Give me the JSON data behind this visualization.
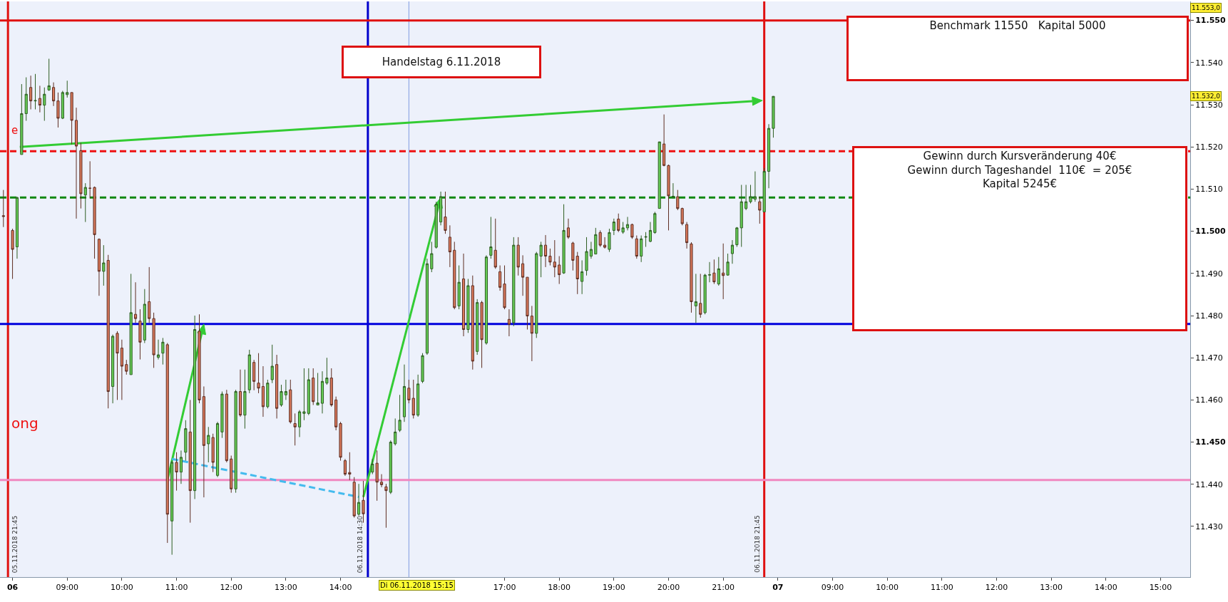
{
  "chart_data": {
    "type": "candlestick",
    "categories": [
      null,
      null,
      "06",
      null,
      null,
      null,
      null,
      null,
      null,
      null,
      null,
      null,
      null,
      null,
      "09:00",
      null,
      null,
      null,
      null,
      null,
      null,
      null,
      null,
      null,
      null,
      null,
      "10:00",
      null,
      null,
      null,
      null,
      null,
      null,
      null,
      null,
      null,
      null,
      null,
      "11:00",
      null,
      null,
      null,
      null,
      null,
      null,
      null,
      null,
      null,
      null,
      null,
      "12:00",
      null,
      null,
      null,
      null,
      null,
      null,
      null,
      null,
      null,
      null,
      null,
      "13:00",
      null,
      null,
      null,
      null,
      null,
      null,
      null,
      null,
      null,
      null,
      null,
      "14:00",
      null,
      null,
      null,
      null,
      null,
      null,
      null,
      null,
      null,
      null,
      null,
      null,
      null,
      null,
      null,
      null,
      null,
      null,
      null,
      null,
      null,
      null,
      null,
      null,
      null,
      null,
      null,
      null,
      null,
      null,
      null,
      null,
      null,
      null,
      null,
      "17:00",
      null,
      null,
      null,
      null,
      null,
      null,
      null,
      null,
      null,
      null,
      null,
      "18:00",
      null,
      null,
      null,
      null,
      null,
      null,
      null,
      null,
      null,
      null,
      null,
      "19:00",
      null,
      null,
      null,
      null,
      null,
      null,
      null,
      null,
      null,
      null,
      null,
      "20:00",
      null,
      null,
      null,
      null,
      null,
      null,
      null,
      null,
      null,
      null,
      null,
      "21:00",
      null,
      null,
      null,
      null,
      null,
      null,
      null,
      null,
      null,
      null,
      null,
      "07",
      null,
      null,
      null,
      null,
      null,
      null,
      null,
      null,
      null,
      null,
      null,
      "09:00",
      null,
      null,
      null,
      null,
      null,
      null,
      null,
      null,
      null,
      null,
      null,
      "10:00",
      null,
      null,
      null,
      null,
      null,
      null,
      null,
      null,
      null,
      null,
      null,
      "11:00",
      null,
      null,
      null,
      null,
      null,
      null,
      null,
      null,
      null,
      null,
      null,
      "12:00",
      null,
      null,
      null,
      null,
      null,
      null,
      null,
      null,
      null,
      null,
      null,
      "13:00",
      null,
      null,
      null,
      null,
      null,
      null,
      null,
      null,
      null,
      null,
      null,
      "14:00",
      null,
      null,
      null,
      null,
      null,
      null,
      null,
      null,
      null,
      null,
      null,
      "15:00",
      null,
      null,
      null,
      null,
      null,
      null
    ],
    "ohlc": [
      [
        11503.7,
        11509.8,
        11501.0,
        11503.5
      ],
      null,
      [
        11500.2,
        11500.6,
        11488.7,
        11495.7
      ],
      [
        11496.3,
        11508.2,
        11493.5,
        11508.0
      ],
      [
        11518.2,
        11534.9,
        11518.2,
        11527.9
      ],
      [
        11527.9,
        11536.5,
        11526.2,
        11532.5
      ],
      [
        11534.1,
        11536.9,
        11528.9,
        11530.9
      ],
      [
        11530.9,
        11537.3,
        11528.9,
        11531.0
      ],
      [
        11531.5,
        11534.5,
        11528.2,
        11529.9
      ],
      [
        11529.9,
        11534.1,
        11526.2,
        11532.5
      ],
      [
        11533.5,
        11540.9,
        11533.3,
        11534.5
      ],
      [
        11534.1,
        11535.3,
        11529.7,
        11530.9
      ],
      [
        11530.9,
        11532.9,
        11524.6,
        11526.8
      ],
      [
        11526.8,
        11533.3,
        11526.6,
        11532.9
      ],
      [
        11532.4,
        11535.7,
        11531.7,
        11532.9
      ],
      [
        11532.9,
        11532.9,
        11520.6,
        11526.3
      ],
      [
        11526.3,
        11529.3,
        11503.0,
        11520.2
      ],
      [
        11519.1,
        11521.0,
        11505.4,
        11508.9
      ],
      [
        11508.6,
        11511.4,
        11502.2,
        11510.4
      ],
      [
        11510.2,
        11516.6,
        11507.8,
        11510.2
      ],
      [
        11510.4,
        11510.6,
        11493.5,
        11499.2
      ],
      [
        11498.1,
        11498.3,
        11484.7,
        11490.5
      ],
      [
        11490.5,
        11496.7,
        11487.1,
        11492.5
      ],
      [
        11493.1,
        11494.4,
        11458.0,
        11462.0
      ],
      [
        11463.2,
        11475.5,
        11459.2,
        11475.1
      ],
      [
        11475.8,
        11476.3,
        11460.0,
        11471.1
      ],
      [
        11472.3,
        11474.3,
        11460.0,
        11468.0
      ],
      [
        11468.4,
        11469.5,
        11466.0,
        11466.8
      ],
      [
        11466.0,
        11489.9,
        11466.0,
        11480.7
      ],
      [
        11480.3,
        11487.9,
        11478.3,
        11479.3
      ],
      [
        11478.7,
        11481.5,
        11469.6,
        11473.7
      ],
      [
        11474.2,
        11486.3,
        11473.5,
        11482.7
      ],
      [
        11483.3,
        11491.5,
        11478.3,
        11479.3
      ],
      [
        11479.3,
        11480.7,
        11467.6,
        11470.7
      ],
      [
        11470.1,
        11474.3,
        11469.6,
        11470.7
      ],
      [
        11471.1,
        11474.7,
        11468.4,
        11473.7
      ],
      [
        11473.1,
        11473.5,
        11426.1,
        11432.9
      ],
      [
        11431.3,
        11445.6,
        11423.3,
        11445.2
      ],
      [
        11445.2,
        11447.6,
        11438.5,
        11442.9
      ],
      [
        11442.9,
        11448.0,
        11440.1,
        11446.4
      ],
      [
        11447.6,
        11455.2,
        11445.6,
        11453.2
      ],
      [
        11452.4,
        11460.0,
        11430.9,
        11438.5
      ],
      [
        11438.5,
        11480.0,
        11436.5,
        11476.7
      ],
      [
        11476.3,
        11480.3,
        11459.2,
        11460.0
      ],
      [
        11460.8,
        11463.2,
        11436.9,
        11449.2
      ],
      [
        11449.6,
        11453.6,
        11445.2,
        11451.6
      ],
      [
        11451.1,
        11452.0,
        11442.9,
        11445.2
      ],
      [
        11442.1,
        11454.8,
        11441.7,
        11454.4
      ],
      [
        11452.4,
        11462.0,
        11451.0,
        11461.4
      ],
      [
        11461.4,
        11462.4,
        11445.2,
        11445.6
      ],
      [
        11446.0,
        11446.8,
        11438.0,
        11438.9
      ],
      [
        11438.9,
        11462.4,
        11438.0,
        11462.0
      ],
      [
        11462.0,
        11467.2,
        11456.0,
        11456.4
      ],
      [
        11456.4,
        11467.2,
        11453.2,
        11462.0
      ],
      [
        11462.4,
        11471.9,
        11461.6,
        11470.7
      ],
      [
        11468.9,
        11469.5,
        11462.3,
        11464.4
      ],
      [
        11464.0,
        11471.1,
        11461.6,
        11462.8
      ],
      [
        11463.2,
        11468.0,
        11456.0,
        11458.4
      ],
      [
        11458.4,
        11464.8,
        11458.0,
        11464.0
      ],
      [
        11464.8,
        11473.1,
        11464.0,
        11468.0
      ],
      [
        11468.4,
        11470.7,
        11455.6,
        11458.0
      ],
      [
        11458.8,
        11463.6,
        11458.4,
        11462.0
      ],
      [
        11461.2,
        11464.8,
        11460.0,
        11462.0
      ],
      [
        11462.4,
        11464.8,
        11454.4,
        11454.8
      ],
      [
        11454.4,
        11456.8,
        11449.2,
        11453.6
      ],
      [
        11453.6,
        11457.6,
        11451.2,
        11457.2
      ],
      [
        11456.8,
        11467.5,
        11455.2,
        11457.2
      ],
      [
        11456.8,
        11467.5,
        11456.4,
        11464.8
      ],
      [
        11465.2,
        11467.5,
        11458.8,
        11459.6
      ],
      [
        11458.8,
        11466.4,
        11458.8,
        11459.3
      ],
      [
        11459.2,
        11466.8,
        11456.8,
        11464.4
      ],
      [
        11464.0,
        11470.0,
        11463.6,
        11465.2
      ],
      [
        11465.2,
        11467.5,
        11458.4,
        11458.8
      ],
      [
        11460.0,
        11460.8,
        11452.8,
        11453.6
      ],
      [
        11454.4,
        11454.8,
        11445.6,
        11446.4
      ],
      [
        11445.6,
        11446.0,
        11442.0,
        11442.4
      ],
      [
        11442.8,
        11447.6,
        11441.0,
        11442.4
      ],
      [
        11440.5,
        11441.7,
        11432.1,
        11432.5
      ],
      [
        11432.9,
        11440.1,
        11432.5,
        11435.7
      ],
      [
        11436.2,
        11440.8,
        11430.9,
        11433.0
      ],
      null,
      [
        11442.9,
        11446.0,
        11442.4,
        11444.8
      ],
      [
        11445.0,
        11448.0,
        11436.1,
        11440.5
      ],
      [
        11440.5,
        11442.4,
        11439.3,
        11439.9
      ],
      [
        11439.4,
        11440.1,
        11429.7,
        11438.5
      ],
      [
        11438.1,
        11450.4,
        11437.7,
        11450.0
      ],
      [
        11449.6,
        11455.6,
        11449.2,
        11452.4
      ],
      [
        11452.8,
        11461.2,
        11452.4,
        11455.2
      ],
      [
        11456.0,
        11468.4,
        11454.8,
        11463.2
      ],
      [
        11462.8,
        11464.8,
        11459.2,
        11460.0
      ],
      [
        11460.4,
        11464.8,
        11455.6,
        11456.4
      ],
      [
        11456.4,
        11466.0,
        11456.0,
        11463.8
      ],
      [
        11464.4,
        11471.1,
        11464.0,
        11470.5
      ],
      [
        11471.1,
        11493.5,
        11470.7,
        11492.3
      ],
      [
        11491.1,
        11497.5,
        11490.3,
        11494.7
      ],
      [
        11496.2,
        11507.0,
        11495.9,
        11506.4
      ],
      [
        11502.2,
        11509.4,
        11501.4,
        11508.2
      ],
      [
        11503.4,
        11509.4,
        11499.4,
        11500.2
      ],
      [
        11498.6,
        11501.4,
        11491.5,
        11495.1
      ],
      [
        11495.5,
        11497.5,
        11481.5,
        11481.9
      ],
      [
        11482.3,
        11491.9,
        11481.5,
        11487.9
      ],
      [
        11488.7,
        11494.7,
        11475.1,
        11476.7
      ],
      [
        11476.7,
        11488.7,
        11475.9,
        11487.1
      ],
      [
        11487.1,
        11489.5,
        11467.2,
        11469.2
      ],
      [
        11471.5,
        11483.9,
        11470.7,
        11483.1
      ],
      [
        11483.1,
        11483.5,
        11467.6,
        11474.3
      ],
      [
        11473.5,
        11494.3,
        11473.1,
        11493.9
      ],
      [
        11494.3,
        11503.4,
        11493.5,
        11496.3
      ],
      [
        11495.5,
        11503.0,
        11491.1,
        11491.5
      ],
      [
        11490.4,
        11491.9,
        11485.9,
        11486.7
      ],
      [
        11487.5,
        11491.9,
        11481.5,
        11481.9
      ],
      [
        11479.1,
        11481.5,
        11475.1,
        11477.9
      ],
      [
        11478.3,
        11498.6,
        11477.5,
        11496.7
      ],
      [
        11496.7,
        11498.6,
        11489.5,
        11491.5
      ],
      [
        11492.3,
        11494.3,
        11484.7,
        11489.1
      ],
      [
        11489.1,
        11489.1,
        11476.7,
        11479.9
      ],
      [
        11479.9,
        11482.3,
        11469.2,
        11475.8
      ],
      [
        11475.8,
        11495.1,
        11474.7,
        11494.7
      ],
      [
        11494.1,
        11497.5,
        11489.1,
        11496.7
      ],
      [
        11496.7,
        11499.1,
        11491.5,
        11494.1
      ],
      [
        11494.1,
        11495.9,
        11491.9,
        11492.7
      ],
      [
        11492.7,
        11497.9,
        11489.1,
        11491.5
      ],
      [
        11492.0,
        11494.1,
        11487.5,
        11489.7
      ],
      [
        11490.1,
        11506.4,
        11489.9,
        11500.2
      ],
      [
        11500.8,
        11503.0,
        11498.2,
        11498.6
      ],
      [
        11497.2,
        11497.5,
        11490.7,
        11493.1
      ],
      [
        11494.1,
        11495.1,
        11485.1,
        11488.7
      ],
      [
        11488.1,
        11493.1,
        11485.1,
        11490.4
      ],
      [
        11490.7,
        11498.6,
        11489.5,
        11495.2
      ],
      [
        11494.1,
        11497.5,
        11493.5,
        11495.7
      ],
      [
        11494.6,
        11500.8,
        11494.6,
        11499.2
      ],
      [
        11499.7,
        11500.2,
        11496.3,
        11496.7
      ],
      [
        11496.7,
        11498.6,
        11495.9,
        11496.2
      ],
      [
        11495.7,
        11500.6,
        11495.1,
        11499.7
      ],
      [
        11500.2,
        11503.0,
        11499.1,
        11502.2
      ],
      [
        11502.9,
        11504.2,
        11499.8,
        11500.2
      ],
      [
        11499.8,
        11502.2,
        11499.4,
        11500.8
      ],
      [
        11500.8,
        11503.4,
        11500.2,
        11501.6
      ],
      [
        11501.6,
        11501.8,
        11498.2,
        11498.6
      ],
      [
        11498.2,
        11499.0,
        11493.5,
        11494.1
      ],
      [
        11494.1,
        11499.0,
        11492.7,
        11498.2
      ],
      [
        11498.6,
        11499.8,
        11496.3,
        11498.7
      ],
      [
        11497.6,
        11502.2,
        11497.4,
        11500.2
      ],
      [
        11499.7,
        11504.6,
        11499.4,
        11504.2
      ],
      [
        11505.4,
        11521.2,
        11505.4,
        11521.2
      ],
      [
        11520.7,
        11527.7,
        11515.4,
        11515.6
      ],
      [
        11515.6,
        11515.8,
        11500.2,
        11508.4
      ],
      [
        11508.2,
        11511.4,
        11507.8,
        11508.3
      ],
      [
        11508.2,
        11509.8,
        11505.0,
        11505.4
      ],
      [
        11505.4,
        11505.6,
        11501.4,
        11501.8
      ],
      [
        11501.6,
        11502.2,
        11495.9,
        11497.3
      ],
      [
        11497.0,
        11497.4,
        11480.7,
        11483.3
      ],
      [
        11482.3,
        11489.9,
        11478.3,
        11483.3
      ],
      [
        11482.9,
        11489.9,
        11479.5,
        11480.3
      ],
      [
        11480.7,
        11489.9,
        11480.3,
        11489.6
      ],
      [
        11489.6,
        11492.7,
        11487.9,
        11489.7
      ],
      [
        11490.1,
        11493.3,
        11487.5,
        11488.0
      ],
      [
        11487.5,
        11493.9,
        11487.1,
        11491.1
      ],
      [
        11490.1,
        11497.1,
        11483.9,
        11489.5
      ],
      [
        11489.6,
        11494.7,
        11489.5,
        11492.7
      ],
      [
        11494.7,
        11497.9,
        11492.3,
        11496.7
      ],
      [
        11496.8,
        11501.0,
        11496.3,
        11500.8
      ],
      [
        11500.8,
        11511.0,
        11496.3,
        11507.0
      ],
      [
        11505.4,
        11511.0,
        11505.0,
        11507.0
      ],
      [
        11507.0,
        11511.0,
        11506.6,
        11508.2
      ],
      [
        11507.6,
        11514.2,
        11507.0,
        11508.2
      ],
      [
        11507.0,
        11508.2,
        11501.8,
        11505.0
      ],
      [
        11504.6,
        11515.0,
        11504.6,
        11514.2
      ],
      [
        11514.2,
        11525.4,
        11510.2,
        11524.4
      ],
      [
        11524.4,
        11532.0,
        11522.2,
        11532.0
      ],
      null,
      null,
      null,
      null,
      null,
      null,
      null,
      null,
      null,
      null,
      null,
      null,
      null,
      null,
      null,
      null,
      null,
      null,
      null,
      null,
      null,
      null,
      null,
      null,
      null,
      null,
      null,
      null,
      null,
      null,
      null,
      null,
      null,
      null,
      null,
      null,
      null,
      null,
      null,
      null,
      null,
      null,
      null,
      null,
      null,
      null,
      null,
      null,
      null,
      null,
      null,
      null,
      null,
      null,
      null,
      null,
      null,
      null,
      null,
      null,
      null,
      null,
      null,
      null,
      null,
      null,
      null,
      null,
      null,
      null,
      null,
      null,
      null,
      null,
      null,
      null,
      null,
      null,
      null,
      null,
      null,
      null,
      null,
      null,
      null,
      null,
      null,
      null,
      null,
      null,
      null
    ],
    "ref_lines": [
      {
        "axis": "y",
        "value": 11550,
        "color": "#e01010"
      },
      {
        "axis": "y",
        "value": 11519,
        "color": "#ee1111",
        "line_style": "dashed"
      },
      {
        "axis": "y",
        "value": 11508,
        "color": "#118811",
        "line_style": "dashed"
      },
      {
        "axis": "y",
        "value": 11478,
        "color": "#0000dd"
      },
      {
        "axis": "y",
        "value": 11441,
        "color": "#f088c0"
      }
    ],
    "annotations": [
      "Handelstag 6.11.2018",
      "Benchmark 11550   Kapital 5000",
      "Gewinn durch Kursveränderung 40€\nGewinn durch Tageshandel  110€  = 205€\nKapital 5245€",
      "ong",
      "e",
      "Di 06.11.2018 15:15",
      "05.11.2018 21:45",
      "06.11.2018 14:30",
      "06.11.2018 21:45",
      {
        "text": "11.553,0",
        "y": 11553
      },
      {
        "text": "11.532,0",
        "y": 11532
      }
    ],
    "ylim": [
      11418,
      11554.5
    ],
    "yticks": [
      {
        "value": 11430,
        "label": "11.430"
      },
      {
        "value": 11440,
        "label": "11.440"
      },
      {
        "value": 11450,
        "label": "11.450"
      },
      {
        "value": 11460,
        "label": "11.460"
      },
      {
        "value": 11470,
        "label": "11.470"
      },
      {
        "value": 11480,
        "label": "11.480"
      },
      {
        "value": 11490,
        "label": "11.490"
      },
      {
        "value": 11500,
        "label": "11.500"
      },
      {
        "value": 11510,
        "label": "11.510"
      },
      {
        "value": 11520,
        "label": "11.520"
      },
      {
        "value": 11530,
        "label": "11.530"
      },
      {
        "value": 11540,
        "label": "11.540"
      },
      {
        "value": 11550,
        "label": "11.550"
      }
    ],
    "grid": false
  }
}
